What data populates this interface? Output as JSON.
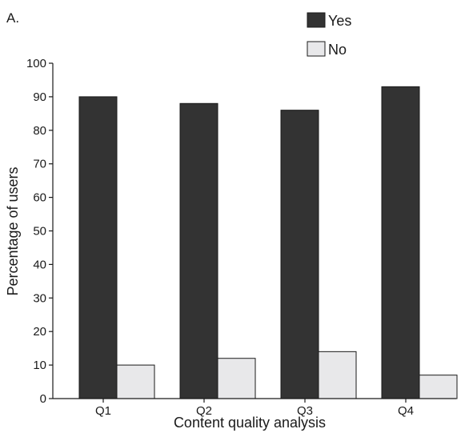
{
  "panel_label": "A.",
  "colors": {
    "yes": "#333333",
    "no": "#e8e8ea",
    "stroke": "#1a1a1a"
  },
  "chart_data": {
    "type": "bar",
    "categories": [
      "Q1",
      "Q2",
      "Q3",
      "Q4"
    ],
    "series": [
      {
        "name": "Yes",
        "values": [
          90,
          88,
          86,
          93
        ]
      },
      {
        "name": "No",
        "values": [
          10,
          12,
          14,
          7
        ]
      }
    ],
    "title": "",
    "xlabel": "Content quality analysis",
    "ylabel": "Percentage of users",
    "ylim": [
      0,
      100
    ],
    "yticks": [
      0,
      10,
      20,
      30,
      40,
      50,
      60,
      70,
      80,
      90,
      100
    ],
    "grid": false,
    "legend_position": "top-right"
  }
}
